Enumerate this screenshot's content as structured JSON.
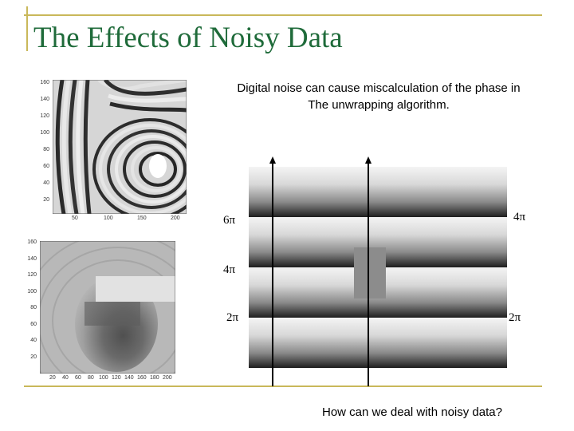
{
  "slide": {
    "title": "The Effects of Noisy Data",
    "caption_line1": "Digital noise can cause miscalculation of the phase in",
    "caption_line2": "The unwrapping algorithm.",
    "question": "How can we deal with noisy data?"
  },
  "phase_diagram": {
    "left_labels": [
      "6π",
      "4π",
      "2π"
    ],
    "right_labels": [
      "4π",
      "2π"
    ]
  },
  "wrapped_image": {
    "y_ticks": [
      "160",
      "140",
      "120",
      "100",
      "80",
      "60",
      "40",
      "20"
    ],
    "x_ticks": [
      "50",
      "100",
      "150",
      "200"
    ]
  },
  "unwrapped_image": {
    "y_ticks": [
      "160",
      "140",
      "120",
      "100",
      "80",
      "60",
      "40",
      "20"
    ],
    "x_ticks": [
      "20",
      "40",
      "60",
      "80",
      "100",
      "120",
      "140",
      "160",
      "180",
      "200"
    ]
  },
  "colors": {
    "title": "#1f6b3a",
    "rule": "#c9b85a"
  }
}
